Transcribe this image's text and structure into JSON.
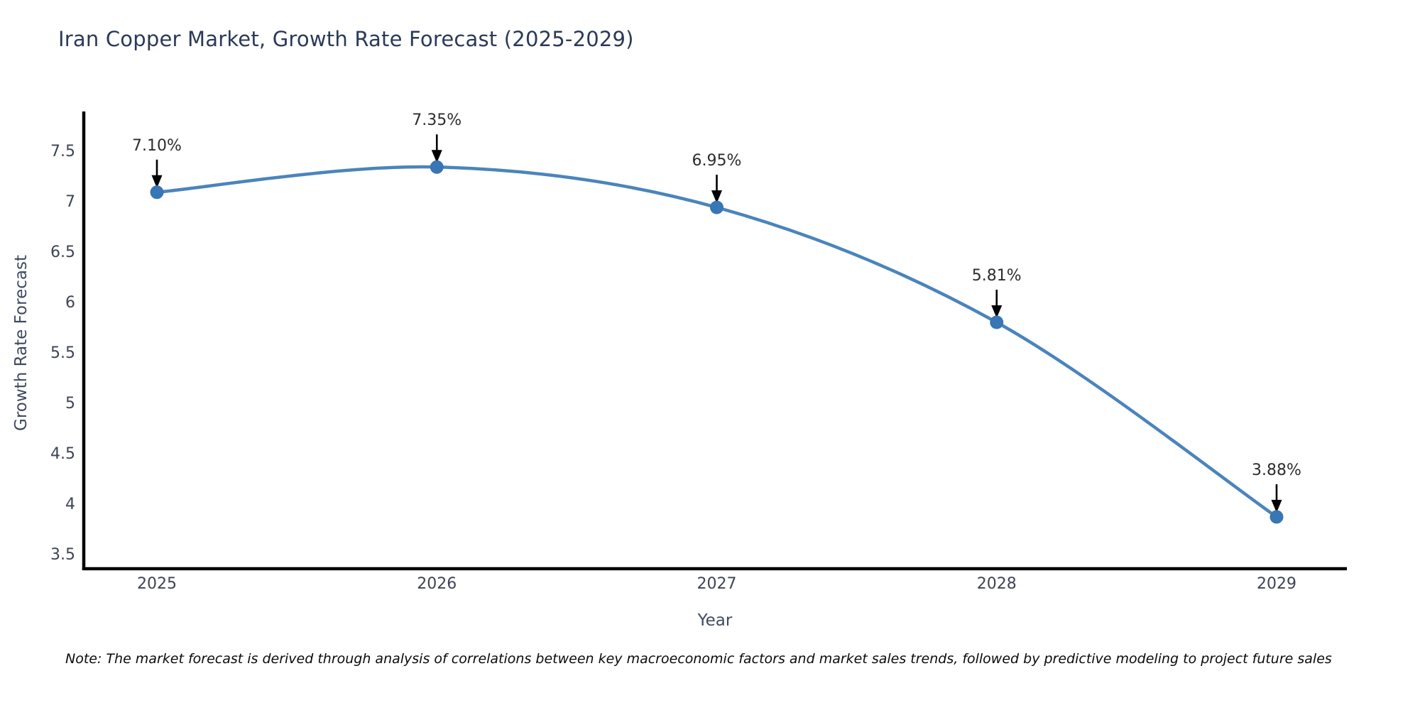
{
  "note": "Note: The market forecast is derived through analysis of correlations between key macroeconomic factors and market sales trends, followed by predictive modeling to project future sales",
  "chart_data": {
    "type": "line",
    "title": "Iran Copper Market, Growth Rate Forecast (2025-2029)",
    "xlabel": "Year",
    "ylabel": "Growth Rate Forecast",
    "x": [
      2025,
      2026,
      2027,
      2028,
      2029
    ],
    "x_tick_labels": [
      "2025",
      "2026",
      "2027",
      "2028",
      "2029"
    ],
    "series": [
      {
        "name": "Growth Rate Forecast",
        "values": [
          7.1,
          7.35,
          6.95,
          5.81,
          3.88
        ]
      }
    ],
    "point_labels": [
      "7.10%",
      "7.35%",
      "6.95%",
      "5.81%",
      "3.88%"
    ],
    "y_ticks": [
      3.5,
      4,
      4.5,
      5,
      5.5,
      6,
      6.5,
      7,
      7.5
    ],
    "ylim": [
      3.35,
      7.9
    ],
    "grid": false,
    "legend_position": "none",
    "marker_style": "circle",
    "annotation_style": "arrow-down",
    "colors": {
      "line": "#4a84bc",
      "marker": "#3876b4",
      "axis": "#000000",
      "title": "#2b3a57",
      "tick_label": "#3d4455",
      "axis_label": "#3f4a5f",
      "annotation": "#2d2d2d",
      "arrow": "#000000"
    }
  }
}
